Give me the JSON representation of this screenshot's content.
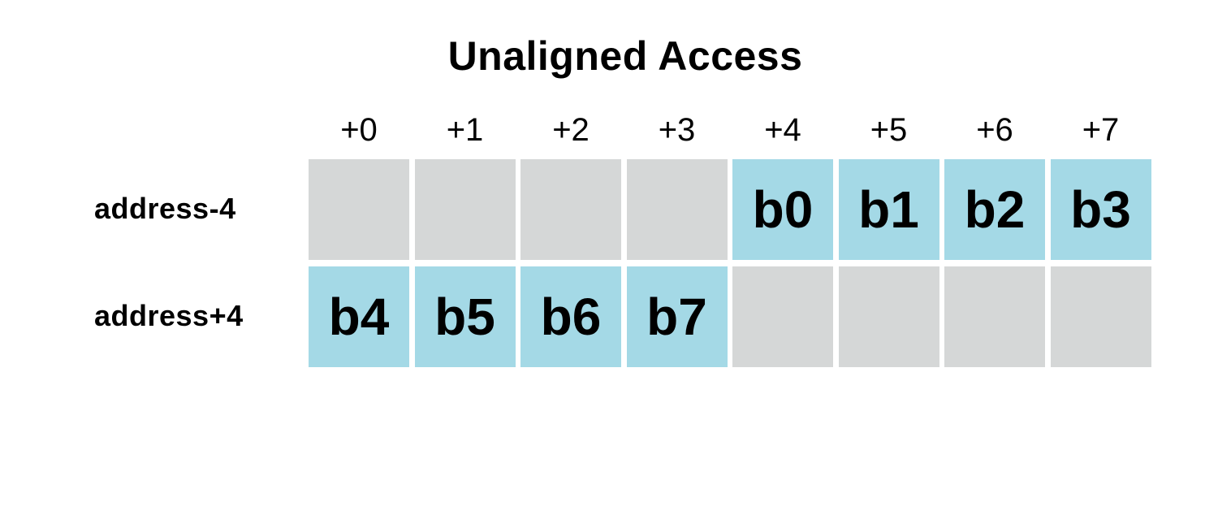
{
  "title": "Unaligned Access",
  "column_headers": [
    "+0",
    "+1",
    "+2",
    "+3",
    "+4",
    "+5",
    "+6",
    "+7"
  ],
  "colors": {
    "empty": "#d5d7d7",
    "filled": "#a4d9e6",
    "text": "#000000"
  },
  "rows": [
    {
      "label": "address-4",
      "cells": [
        "",
        "",
        "",
        "",
        "b0",
        "b1",
        "b2",
        "b3"
      ]
    },
    {
      "label": "address+4",
      "cells": [
        "b4",
        "b5",
        "b6",
        "b7",
        "",
        "",
        "",
        ""
      ]
    }
  ]
}
